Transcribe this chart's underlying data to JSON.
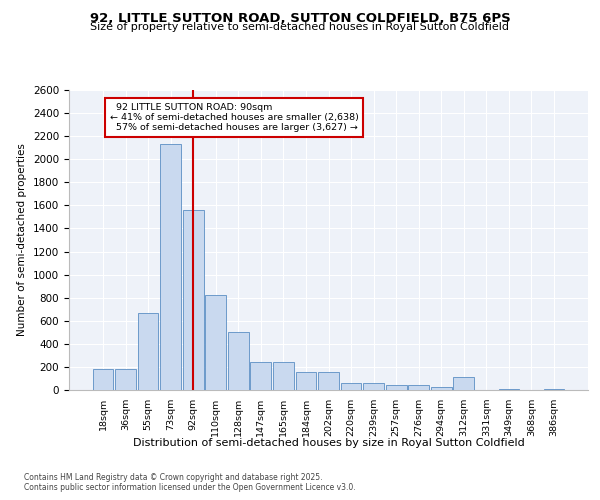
{
  "title": "92, LITTLE SUTTON ROAD, SUTTON COLDFIELD, B75 6PS",
  "subtitle": "Size of property relative to semi-detached houses in Royal Sutton Coldfield",
  "xlabel_dist": "Distribution of semi-detached houses by size in Royal Sutton Coldfield",
  "ylabel": "Number of semi-detached properties",
  "bin_labels": [
    "18sqm",
    "36sqm",
    "55sqm",
    "73sqm",
    "92sqm",
    "110sqm",
    "128sqm",
    "147sqm",
    "165sqm",
    "184sqm",
    "202sqm",
    "220sqm",
    "239sqm",
    "257sqm",
    "276sqm",
    "294sqm",
    "312sqm",
    "331sqm",
    "349sqm",
    "368sqm",
    "386sqm"
  ],
  "bar_heights": [
    180,
    180,
    670,
    2130,
    1560,
    820,
    500,
    240,
    240,
    160,
    160,
    60,
    60,
    40,
    40,
    30,
    110,
    0,
    10,
    0,
    10
  ],
  "bar_color": "#c9d9ef",
  "bar_edge_color": "#5b8ec4",
  "property_line_x": 4,
  "property_size": "90sqm",
  "property_label": "92 LITTLE SUTTON ROAD: 90sqm",
  "pct_smaller": 41,
  "count_smaller": 2638,
  "pct_larger": 57,
  "count_larger": 3627,
  "line_color": "#cc0000",
  "annotation_box_color": "#cc0000",
  "bg_color": "#eef2f9",
  "grid_color": "#ffffff",
  "footer_text": "Contains HM Land Registry data © Crown copyright and database right 2025.\nContains public sector information licensed under the Open Government Licence v3.0.",
  "ylim": [
    0,
    2600
  ],
  "yticks": [
    0,
    200,
    400,
    600,
    800,
    1000,
    1200,
    1400,
    1600,
    1800,
    2000,
    2200,
    2400,
    2600
  ]
}
